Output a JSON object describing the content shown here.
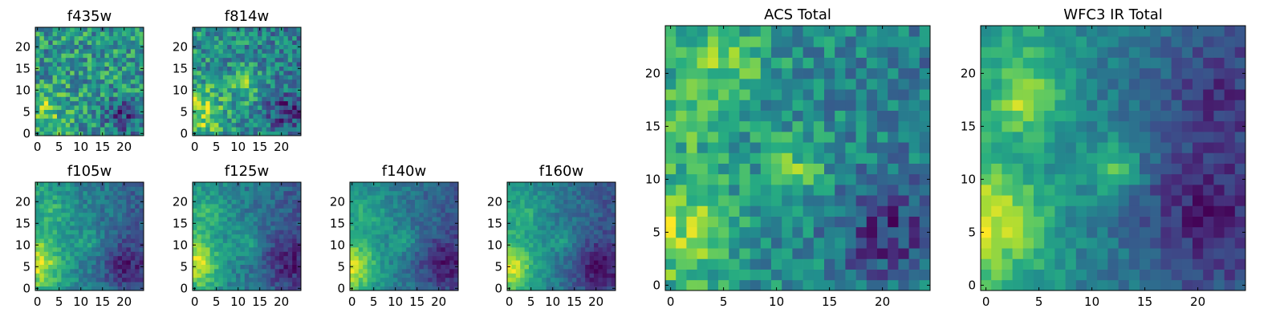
{
  "figure": {
    "description_free": true
  },
  "chart_data": [
    {
      "id": "f435w",
      "type": "heatmap",
      "title": "f435w",
      "size": 25,
      "xlim": [
        -0.5,
        24.5
      ],
      "ylim": [
        -0.5,
        24.5
      ],
      "xticks": [
        0,
        5,
        10,
        15,
        20
      ],
      "yticks": [
        0,
        5,
        10,
        15,
        20
      ],
      "colormap": "viridis",
      "grid": false,
      "features": {
        "bright": [
          [
            1,
            5,
            3.5,
            0.3
          ]
        ],
        "dark": [
          [
            20,
            4,
            3,
            0.35
          ]
        ],
        "gradient": 0.0,
        "noise": 0.55,
        "base": 0.7
      }
    },
    {
      "id": "f814w",
      "type": "heatmap",
      "title": "f814w",
      "size": 25,
      "xlim": [
        -0.5,
        24.5
      ],
      "ylim": [
        -0.5,
        24.5
      ],
      "xticks": [
        0,
        5,
        10,
        15,
        20
      ],
      "yticks": [
        0,
        5,
        10,
        15,
        20
      ],
      "colormap": "viridis",
      "grid": false,
      "features": {
        "bright": [
          [
            1,
            5,
            4,
            0.35
          ],
          [
            12,
            11,
            2.5,
            0.25
          ]
        ],
        "dark": [
          [
            21,
            5,
            3,
            0.3
          ]
        ],
        "gradient": 0.1,
        "noise": 0.45,
        "base": 0.65
      }
    },
    {
      "id": "f105w",
      "type": "heatmap",
      "title": "f105w",
      "size": 25,
      "xlim": [
        -0.5,
        24.5
      ],
      "ylim": [
        -0.5,
        24.5
      ],
      "xticks": [
        0,
        5,
        10,
        15,
        20
      ],
      "yticks": [
        0,
        5,
        10,
        15,
        20
      ],
      "colormap": "viridis",
      "grid": false,
      "features": {
        "bright": [
          [
            0,
            6,
            4,
            0.5
          ],
          [
            12,
            11,
            2,
            0.2
          ],
          [
            4,
            18,
            3,
            0.15
          ]
        ],
        "dark": [
          [
            20,
            5,
            4,
            0.3
          ]
        ],
        "gradient": 0.35,
        "noise": 0.3,
        "base": 0.55
      }
    },
    {
      "id": "f125w",
      "type": "heatmap",
      "title": "f125w",
      "size": 25,
      "xlim": [
        -0.5,
        24.5
      ],
      "ylim": [
        -0.5,
        24.5
      ],
      "xticks": [
        0,
        5,
        10,
        15,
        20
      ],
      "yticks": [
        0,
        5,
        10,
        15,
        20
      ],
      "colormap": "viridis",
      "grid": false,
      "features": {
        "bright": [
          [
            0,
            6,
            4,
            0.55
          ],
          [
            12,
            11,
            2,
            0.25
          ],
          [
            4,
            17,
            3,
            0.2
          ]
        ],
        "dark": [
          [
            21,
            6,
            4,
            0.3
          ]
        ],
        "gradient": 0.35,
        "noise": 0.3,
        "base": 0.55
      }
    },
    {
      "id": "f140w",
      "type": "heatmap",
      "title": "f140w",
      "size": 25,
      "xlim": [
        -0.5,
        24.5
      ],
      "ylim": [
        -0.5,
        24.5
      ],
      "xticks": [
        0,
        5,
        10,
        15,
        20
      ],
      "yticks": [
        0,
        5,
        10,
        15,
        20
      ],
      "colormap": "viridis",
      "grid": false,
      "features": {
        "bright": [
          [
            0,
            5,
            4,
            0.6
          ],
          [
            12,
            11,
            2,
            0.25
          ],
          [
            4,
            17,
            3,
            0.2
          ]
        ],
        "dark": [
          [
            21,
            6,
            4,
            0.35
          ]
        ],
        "gradient": 0.4,
        "noise": 0.28,
        "base": 0.52
      }
    },
    {
      "id": "f160w",
      "type": "heatmap",
      "title": "f160w",
      "size": 25,
      "xlim": [
        -0.5,
        24.5
      ],
      "ylim": [
        -0.5,
        24.5
      ],
      "xticks": [
        0,
        5,
        10,
        15,
        20
      ],
      "yticks": [
        0,
        5,
        10,
        15,
        20
      ],
      "colormap": "viridis",
      "grid": false,
      "features": {
        "bright": [
          [
            0,
            5,
            4,
            0.65
          ],
          [
            12,
            11,
            2,
            0.25
          ],
          [
            4,
            17,
            3,
            0.2
          ]
        ],
        "dark": [
          [
            20,
            5,
            4,
            0.4
          ]
        ],
        "gradient": 0.45,
        "noise": 0.28,
        "base": 0.5
      }
    },
    {
      "id": "acs-total",
      "type": "heatmap",
      "title": "ACS Total",
      "size": 25,
      "xlim": [
        -0.5,
        24.5
      ],
      "ylim": [
        -0.5,
        24.5
      ],
      "xticks": [
        0,
        5,
        10,
        15,
        20
      ],
      "yticks": [
        0,
        5,
        10,
        15,
        20
      ],
      "colormap": "viridis",
      "grid": false,
      "features": {
        "bright": [
          [
            1,
            5,
            3.5,
            0.35
          ],
          [
            12,
            11,
            2,
            0.3
          ],
          [
            5,
            21,
            3,
            0.25
          ],
          [
            3,
            16,
            2.5,
            0.2
          ]
        ],
        "dark": [
          [
            20,
            5,
            3,
            0.35
          ]
        ],
        "gradient": 0.15,
        "noise": 0.42,
        "base": 0.62
      }
    },
    {
      "id": "wfc3-ir-total",
      "type": "heatmap",
      "title": "WFC3 IR Total",
      "size": 25,
      "xlim": [
        -0.5,
        24.5
      ],
      "ylim": [
        -0.5,
        24.5
      ],
      "xticks": [
        0,
        5,
        10,
        15,
        20
      ],
      "yticks": [
        0,
        5,
        10,
        15,
        20
      ],
      "colormap": "viridis",
      "grid": false,
      "features": {
        "bright": [
          [
            0,
            6,
            4,
            0.55
          ],
          [
            12,
            11,
            1.8,
            0.45
          ],
          [
            4,
            17,
            2,
            0.45
          ],
          [
            5,
            21,
            3,
            0.2
          ]
        ],
        "dark": [
          [
            20,
            7,
            4,
            0.3
          ],
          [
            21,
            18,
            3,
            0.2
          ]
        ],
        "gradient": 0.4,
        "noise": 0.28,
        "base": 0.5
      }
    }
  ]
}
